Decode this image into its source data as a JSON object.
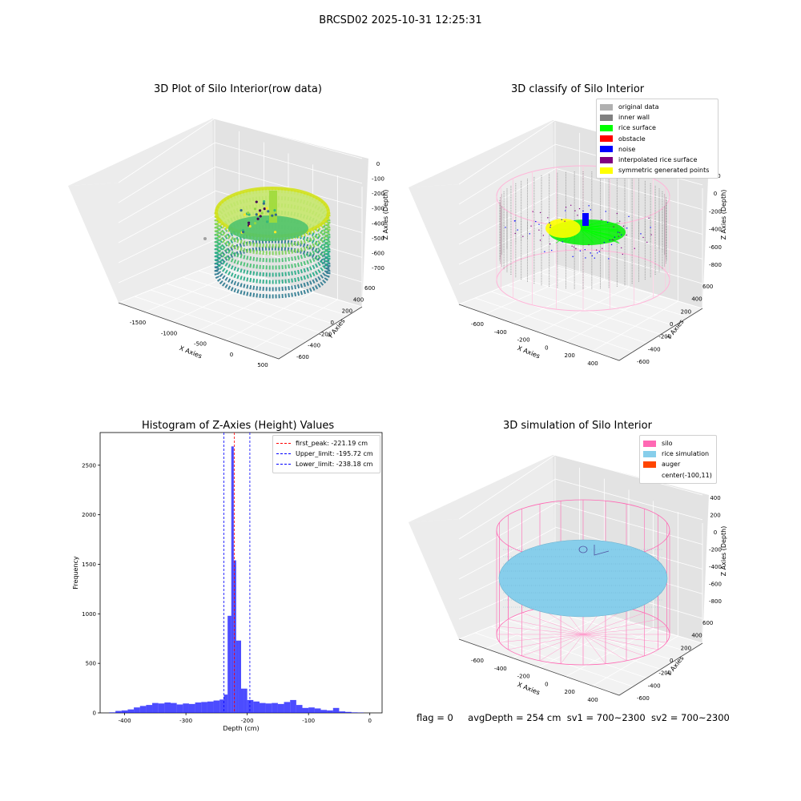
{
  "figure_title": "BRCSD02 2025-10-31 12:25:31",
  "status_line": {
    "flag": "flag = 0",
    "avg_depth": "avgDepth = 254 cm",
    "sv1": "sv1 = 700~2300",
    "sv2": "sv2 = 700~2300"
  },
  "chart_data": [
    {
      "type": "scatter",
      "title": "3D Plot of Silo Interior(row data)",
      "xlabel": "X Axies",
      "ylabel": "Y Axies",
      "zlabel": "Z Axies (Depth)",
      "x_ticks": [
        "-1500",
        "-1000",
        "-500",
        "0",
        "500"
      ],
      "y_ticks": [
        "-600",
        "-400",
        "-200",
        "0",
        "200",
        "400",
        "600"
      ],
      "z_ticks": [
        "0",
        "-100",
        "-200",
        "-300",
        "-400",
        "-500",
        "-600",
        "-700"
      ],
      "colormap": "viridis",
      "description_points": "elliptical ring of wall points from z≈-700 to z≈-200 with a central surface near z≈-230"
    },
    {
      "type": "scatter",
      "title": "3D classify of Silo Interior",
      "xlabel": "X Axies",
      "ylabel": "Y Axies",
      "zlabel": "Z Axies (Depth)",
      "x_ticks": [
        "-600",
        "-400",
        "-200",
        "0",
        "200",
        "400"
      ],
      "y_ticks": [
        "-600",
        "-400",
        "-200",
        "0",
        "200",
        "400",
        "600"
      ],
      "z_ticks": [
        "200",
        "0",
        "-200",
        "-400",
        "-600",
        "-800"
      ],
      "legend": [
        {
          "label": "original data",
          "color": "#b0b0b0"
        },
        {
          "label": "inner wall",
          "color": "#808080"
        },
        {
          "label": "rice surface",
          "color": "#00ff00"
        },
        {
          "label": "obstacle",
          "color": "#ff0000"
        },
        {
          "label": "noise",
          "color": "#0000ff"
        },
        {
          "label": "interpolated rice surface",
          "color": "#800080"
        },
        {
          "label": "symmetric generated points",
          "color": "#ffff00"
        }
      ]
    },
    {
      "type": "bar",
      "title": "Histogram of Z-Axies (Height) Values",
      "xlabel": "Depth (cm)",
      "ylabel": "Frequency",
      "xlim": [
        -440,
        20
      ],
      "ylim": [
        0,
        2830
      ],
      "x_ticks": [
        -400,
        -300,
        -200,
        -100,
        0
      ],
      "y_ticks": [
        0,
        500,
        1000,
        1500,
        2000,
        2500
      ],
      "bar_color": "#0000ff",
      "bar_opacity": 0.7,
      "bins_left": [
        -425,
        -415,
        -405,
        -395,
        -385,
        -375,
        -365,
        -355,
        -345,
        -335,
        -325,
        -315,
        -305,
        -295,
        -285,
        -275,
        -265,
        -255,
        -245,
        -238,
        -232,
        -226,
        -222,
        -218,
        -214,
        -210,
        -206,
        -200,
        -190,
        -180,
        -170,
        -160,
        -150,
        -140,
        -130,
        -120,
        -110,
        -100,
        -90,
        -80,
        -70,
        -60,
        -50,
        -40,
        -30,
        -20
      ],
      "bins_width": [
        10,
        10,
        10,
        10,
        10,
        10,
        10,
        10,
        10,
        10,
        10,
        10,
        10,
        10,
        10,
        10,
        10,
        10,
        7,
        6,
        6,
        4,
        4,
        4,
        4,
        4,
        6,
        10,
        10,
        10,
        10,
        10,
        10,
        10,
        10,
        10,
        10,
        10,
        10,
        10,
        10,
        10,
        10,
        10,
        10,
        10
      ],
      "values": [
        5,
        20,
        25,
        35,
        55,
        70,
        80,
        100,
        95,
        105,
        100,
        85,
        95,
        90,
        105,
        110,
        115,
        125,
        135,
        185,
        980,
        2690,
        1540,
        730,
        730,
        245,
        245,
        130,
        115,
        100,
        95,
        100,
        90,
        110,
        130,
        80,
        50,
        55,
        45,
        30,
        25,
        50,
        15,
        10,
        5,
        3
      ],
      "vlines": [
        {
          "label": "first_peak: -221.19 cm",
          "x": -221.19,
          "color": "#ff0000"
        },
        {
          "label": "Upper_limit: -195.72 cm",
          "x": -195.72,
          "color": "#0000ff"
        },
        {
          "label": "Lower_limit: -238.18 cm",
          "x": -238.18,
          "color": "#0000ff"
        }
      ]
    },
    {
      "type": "scatter",
      "title": "3D simulation of Silo Interior",
      "xlabel": "X Axies",
      "ylabel": "Y Axies",
      "zlabel": "Z Axies (Depth)",
      "x_ticks": [
        "-600",
        "-400",
        "-200",
        "0",
        "200",
        "400"
      ],
      "y_ticks": [
        "-600",
        "-400",
        "-200",
        "0",
        "200",
        "400",
        "600"
      ],
      "z_ticks": [
        "400",
        "200",
        "0",
        "-200",
        "-400",
        "-600",
        "-800"
      ],
      "legend": [
        {
          "label": "silo",
          "color": "#ff69b4"
        },
        {
          "label": "rice simulation",
          "color": "#87ceeb"
        },
        {
          "label": "auger",
          "color": "#ff4500"
        },
        {
          "label": "center(-100,11)",
          "color": ""
        }
      ]
    }
  ]
}
